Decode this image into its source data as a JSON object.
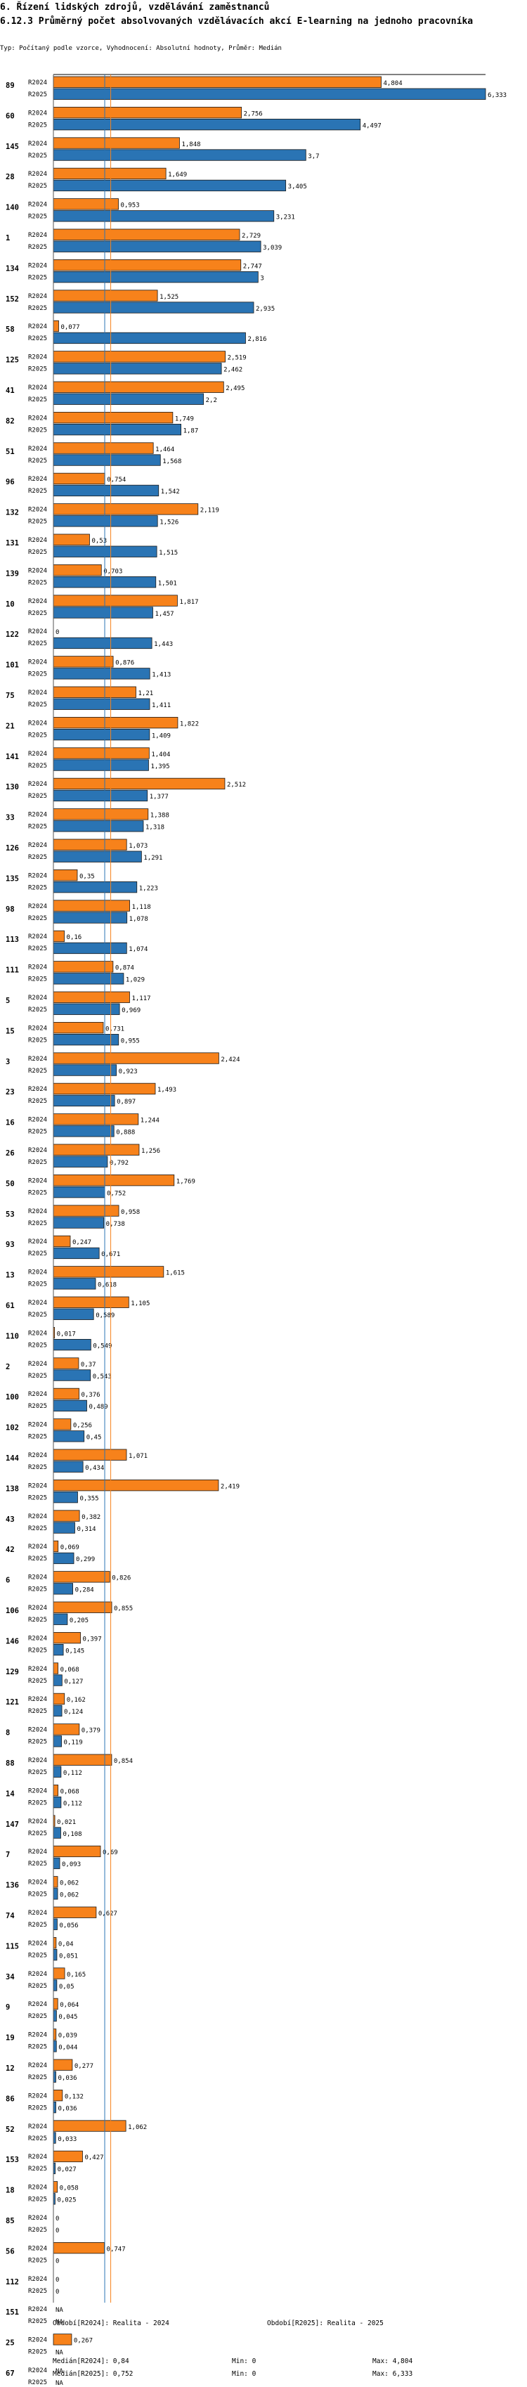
{
  "title_line1": "6. Řízení lidských zdrojů, vzdělávání zaměstnanců",
  "title_line2": "6.12.3 Průměrný počet absolvovaných vzdělávacích akcí E-learning na jednoho pracovníka",
  "subtitle": "Typ: Počítaný podle vzorce, Vyhodnocení: Absolutní hodnoty, Průměr: Medián",
  "chart_data": {
    "type": "bar",
    "orientation": "horizontal",
    "xlim": [
      0,
      6.333
    ],
    "series": [
      {
        "name": "R2024",
        "color": "#f7821b"
      },
      {
        "name": "R2025",
        "color": "#2a74b4"
      }
    ],
    "groups": [
      {
        "id": "89",
        "v2024": 4.804,
        "l2024": "4,804",
        "v2025": 6.333,
        "l2025": "6,333"
      },
      {
        "id": "60",
        "v2024": 2.756,
        "l2024": "2,756",
        "v2025": 4.497,
        "l2025": "4,497"
      },
      {
        "id": "145",
        "v2024": 1.848,
        "l2024": "1,848",
        "v2025": 3.7,
        "l2025": "3,7"
      },
      {
        "id": "28",
        "v2024": 1.649,
        "l2024": "1,649",
        "v2025": 3.405,
        "l2025": "3,405"
      },
      {
        "id": "140",
        "v2024": 0.953,
        "l2024": "0,953",
        "v2025": 3.231,
        "l2025": "3,231"
      },
      {
        "id": "1",
        "v2024": 2.729,
        "l2024": "2,729",
        "v2025": 3.039,
        "l2025": "3,039"
      },
      {
        "id": "134",
        "v2024": 2.747,
        "l2024": "2,747",
        "v2025": 3,
        "l2025": "3"
      },
      {
        "id": "152",
        "v2024": 1.525,
        "l2024": "1,525",
        "v2025": 2.935,
        "l2025": "2,935"
      },
      {
        "id": "58",
        "v2024": 0.077,
        "l2024": "0,077",
        "v2025": 2.816,
        "l2025": "2,816"
      },
      {
        "id": "125",
        "v2024": 2.519,
        "l2024": "2,519",
        "v2025": 2.462,
        "l2025": "2,462"
      },
      {
        "id": "41",
        "v2024": 2.495,
        "l2024": "2,495",
        "v2025": 2.2,
        "l2025": "2,2"
      },
      {
        "id": "82",
        "v2024": 1.749,
        "l2024": "1,749",
        "v2025": 1.87,
        "l2025": "1,87"
      },
      {
        "id": "51",
        "v2024": 1.464,
        "l2024": "1,464",
        "v2025": 1.568,
        "l2025": "1,568"
      },
      {
        "id": "96",
        "v2024": 0.754,
        "l2024": "0,754",
        "v2025": 1.542,
        "l2025": "1,542"
      },
      {
        "id": "132",
        "v2024": 2.119,
        "l2024": "2,119",
        "v2025": 1.526,
        "l2025": "1,526"
      },
      {
        "id": "131",
        "v2024": 0.53,
        "l2024": "0,53",
        "v2025": 1.515,
        "l2025": "1,515"
      },
      {
        "id": "139",
        "v2024": 0.703,
        "l2024": "0,703",
        "v2025": 1.501,
        "l2025": "1,501"
      },
      {
        "id": "10",
        "v2024": 1.817,
        "l2024": "1,817",
        "v2025": 1.457,
        "l2025": "1,457"
      },
      {
        "id": "122",
        "v2024": 0,
        "l2024": "0",
        "v2025": 1.443,
        "l2025": "1,443"
      },
      {
        "id": "101",
        "v2024": 0.876,
        "l2024": "0,876",
        "v2025": 1.413,
        "l2025": "1,413"
      },
      {
        "id": "75",
        "v2024": 1.21,
        "l2024": "1,21",
        "v2025": 1.411,
        "l2025": "1,411"
      },
      {
        "id": "21",
        "v2024": 1.822,
        "l2024": "1,822",
        "v2025": 1.409,
        "l2025": "1,409"
      },
      {
        "id": "141",
        "v2024": 1.404,
        "l2024": "1,404",
        "v2025": 1.395,
        "l2025": "1,395"
      },
      {
        "id": "130",
        "v2024": 2.512,
        "l2024": "2,512",
        "v2025": 1.377,
        "l2025": "1,377"
      },
      {
        "id": "33",
        "v2024": 1.388,
        "l2024": "1,388",
        "v2025": 1.318,
        "l2025": "1,318"
      },
      {
        "id": "126",
        "v2024": 1.073,
        "l2024": "1,073",
        "v2025": 1.291,
        "l2025": "1,291"
      },
      {
        "id": "135",
        "v2024": 0.35,
        "l2024": "0,35",
        "v2025": 1.223,
        "l2025": "1,223"
      },
      {
        "id": "98",
        "v2024": 1.118,
        "l2024": "1,118",
        "v2025": 1.078,
        "l2025": "1,078"
      },
      {
        "id": "113",
        "v2024": 0.16,
        "l2024": "0,16",
        "v2025": 1.074,
        "l2025": "1,074"
      },
      {
        "id": "111",
        "v2024": 0.874,
        "l2024": "0,874",
        "v2025": 1.029,
        "l2025": "1,029"
      },
      {
        "id": "5",
        "v2024": 1.117,
        "l2024": "1,117",
        "v2025": 0.969,
        "l2025": "0,969"
      },
      {
        "id": "15",
        "v2024": 0.731,
        "l2024": "0,731",
        "v2025": 0.955,
        "l2025": "0,955"
      },
      {
        "id": "3",
        "v2024": 2.424,
        "l2024": "2,424",
        "v2025": 0.923,
        "l2025": "0,923"
      },
      {
        "id": "23",
        "v2024": 1.493,
        "l2024": "1,493",
        "v2025": 0.897,
        "l2025": "0,897"
      },
      {
        "id": "16",
        "v2024": 1.244,
        "l2024": "1,244",
        "v2025": 0.888,
        "l2025": "0,888"
      },
      {
        "id": "26",
        "v2024": 1.256,
        "l2024": "1,256",
        "v2025": 0.792,
        "l2025": "0,792"
      },
      {
        "id": "50",
        "v2024": 1.769,
        "l2024": "1,769",
        "v2025": 0.752,
        "l2025": "0,752"
      },
      {
        "id": "53",
        "v2024": 0.958,
        "l2024": "0,958",
        "v2025": 0.738,
        "l2025": "0,738"
      },
      {
        "id": "93",
        "v2024": 0.247,
        "l2024": "0,247",
        "v2025": 0.671,
        "l2025": "0,671"
      },
      {
        "id": "13",
        "v2024": 1.615,
        "l2024": "1,615",
        "v2025": 0.618,
        "l2025": "0,618"
      },
      {
        "id": "61",
        "v2024": 1.105,
        "l2024": "1,105",
        "v2025": 0.589,
        "l2025": "0,589"
      },
      {
        "id": "110",
        "v2024": 0.017,
        "l2024": "0,017",
        "v2025": 0.549,
        "l2025": "0,549"
      },
      {
        "id": "2",
        "v2024": 0.37,
        "l2024": "0,37",
        "v2025": 0.543,
        "l2025": "0,543"
      },
      {
        "id": "100",
        "v2024": 0.376,
        "l2024": "0,376",
        "v2025": 0.489,
        "l2025": "0,489"
      },
      {
        "id": "102",
        "v2024": 0.256,
        "l2024": "0,256",
        "v2025": 0.45,
        "l2025": "0,45"
      },
      {
        "id": "144",
        "v2024": 1.071,
        "l2024": "1,071",
        "v2025": 0.434,
        "l2025": "0,434"
      },
      {
        "id": "138",
        "v2024": 2.419,
        "l2024": "2,419",
        "v2025": 0.355,
        "l2025": "0,355"
      },
      {
        "id": "43",
        "v2024": 0.382,
        "l2024": "0,382",
        "v2025": 0.314,
        "l2025": "0,314"
      },
      {
        "id": "42",
        "v2024": 0.069,
        "l2024": "0,069",
        "v2025": 0.299,
        "l2025": "0,299"
      },
      {
        "id": "6",
        "v2024": 0.826,
        "l2024": "0,826",
        "v2025": 0.284,
        "l2025": "0,284"
      },
      {
        "id": "106",
        "v2024": 0.855,
        "l2024": "0,855",
        "v2025": 0.205,
        "l2025": "0,205"
      },
      {
        "id": "146",
        "v2024": 0.397,
        "l2024": "0,397",
        "v2025": 0.145,
        "l2025": "0,145"
      },
      {
        "id": "129",
        "v2024": 0.068,
        "l2024": "0,068",
        "v2025": 0.127,
        "l2025": "0,127"
      },
      {
        "id": "121",
        "v2024": 0.162,
        "l2024": "0,162",
        "v2025": 0.124,
        "l2025": "0,124"
      },
      {
        "id": "8",
        "v2024": 0.379,
        "l2024": "0,379",
        "v2025": 0.119,
        "l2025": "0,119"
      },
      {
        "id": "88",
        "v2024": 0.854,
        "l2024": "0,854",
        "v2025": 0.112,
        "l2025": "0,112"
      },
      {
        "id": "14",
        "v2024": 0.068,
        "l2024": "0,068",
        "v2025": 0.112,
        "l2025": "0,112"
      },
      {
        "id": "147",
        "v2024": 0.021,
        "l2024": "0,021",
        "v2025": 0.108,
        "l2025": "0,108"
      },
      {
        "id": "7",
        "v2024": 0.69,
        "l2024": "0,69",
        "v2025": 0.093,
        "l2025": "0,093"
      },
      {
        "id": "136",
        "v2024": 0.062,
        "l2024": "0,062",
        "v2025": 0.062,
        "l2025": "0,062"
      },
      {
        "id": "74",
        "v2024": 0.627,
        "l2024": "0,627",
        "v2025": 0.056,
        "l2025": "0,056"
      },
      {
        "id": "115",
        "v2024": 0.04,
        "l2024": "0,04",
        "v2025": 0.051,
        "l2025": "0,051"
      },
      {
        "id": "34",
        "v2024": 0.165,
        "l2024": "0,165",
        "v2025": 0.05,
        "l2025": "0,05"
      },
      {
        "id": "9",
        "v2024": 0.064,
        "l2024": "0,064",
        "v2025": 0.045,
        "l2025": "0,045"
      },
      {
        "id": "19",
        "v2024": 0.039,
        "l2024": "0,039",
        "v2025": 0.044,
        "l2025": "0,044"
      },
      {
        "id": "12",
        "v2024": 0.277,
        "l2024": "0,277",
        "v2025": 0.036,
        "l2025": "0,036"
      },
      {
        "id": "86",
        "v2024": 0.132,
        "l2024": "0,132",
        "v2025": 0.036,
        "l2025": "0,036"
      },
      {
        "id": "52",
        "v2024": 1.062,
        "l2024": "1,062",
        "v2025": 0.033,
        "l2025": "0,033"
      },
      {
        "id": "153",
        "v2024": 0.427,
        "l2024": "0,427",
        "v2025": 0.027,
        "l2025": "0,027"
      },
      {
        "id": "18",
        "v2024": 0.058,
        "l2024": "0,058",
        "v2025": 0.025,
        "l2025": "0,025"
      },
      {
        "id": "85",
        "v2024": 0,
        "l2024": "0",
        "v2025": 0,
        "l2025": "0"
      },
      {
        "id": "56",
        "v2024": 0.747,
        "l2024": "0,747",
        "v2025": 0,
        "l2025": "0"
      },
      {
        "id": "112",
        "v2024": 0,
        "l2024": "0",
        "v2025": 0,
        "l2025": "0"
      },
      {
        "id": "151",
        "v2024": null,
        "l2024": "NA",
        "v2025": null,
        "l2025": "NA"
      },
      {
        "id": "25",
        "v2024": 0.267,
        "l2024": "0,267",
        "v2025": null,
        "l2025": "NA"
      },
      {
        "id": "67",
        "v2024": null,
        "l2024": "NA",
        "v2025": null,
        "l2025": "NA"
      }
    ],
    "median_2024": 0.84,
    "median_2025": 0.752,
    "footer": {
      "period_2024": "Období[R2024]: Realita - 2024",
      "period_2025": "Období[R2025]: Realita - 2025",
      "median_2024_label": "Medián[R2024]: 0,84",
      "median_2025_label": "Medián[R2025]: 0,752",
      "min_2024_label": "Min: 0",
      "min_2025_label": "Min: 0",
      "max_2024_label": "Max: 4,804",
      "max_2025_label": "Max: 6,333"
    }
  }
}
